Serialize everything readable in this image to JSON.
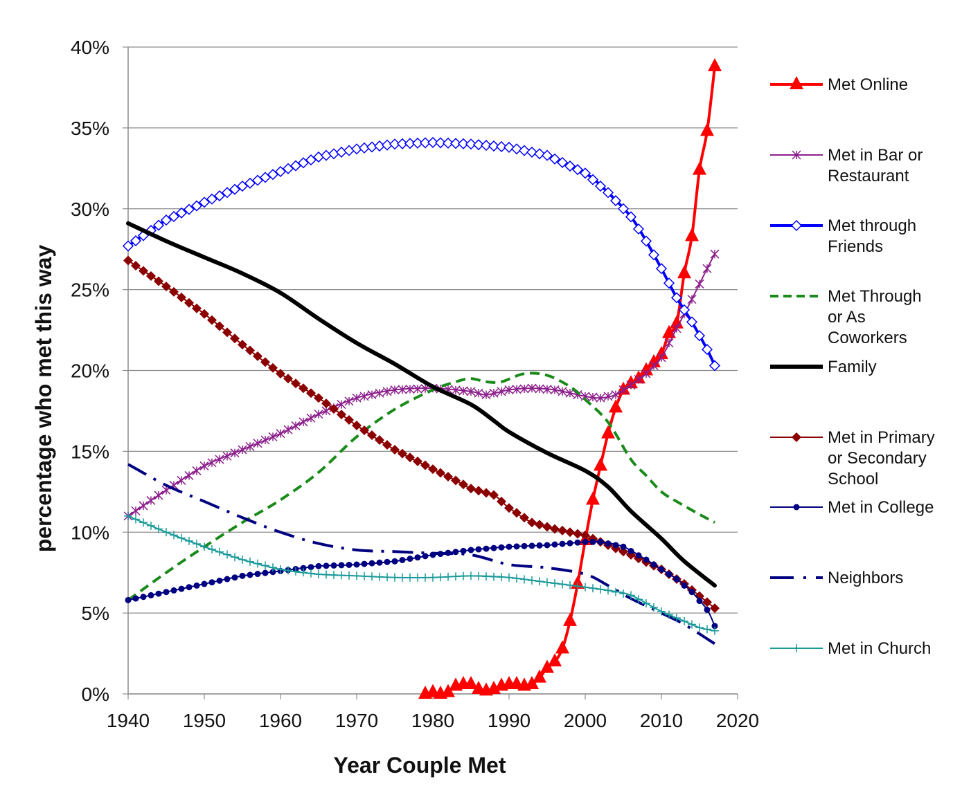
{
  "chart_data": {
    "type": "line",
    "xlabel": "Year Couple Met",
    "ylabel": "percentage who met this way",
    "xlim": [
      1940,
      2020
    ],
    "ylim": [
      0,
      40
    ],
    "x_ticks": [
      "1940",
      "1950",
      "1960",
      "1970",
      "1980",
      "1990",
      "2000",
      "2010",
      "2020"
    ],
    "y_ticks": [
      "0%",
      "5%",
      "10%",
      "15%",
      "20%",
      "25%",
      "30%",
      "35%",
      "40%"
    ],
    "grid": "horizontal",
    "legend_position": "right",
    "series": [
      {
        "name": "Met Online",
        "legend_lines": [
          "Met Online"
        ],
        "color": "#ff0000",
        "marker": "triangle",
        "style": "solid",
        "width": 4,
        "points": [
          [
            1979,
            0
          ],
          [
            1980,
            0.1
          ],
          [
            1981,
            0
          ],
          [
            1982,
            0.1
          ],
          [
            1983,
            0.5
          ],
          [
            1984,
            0.6
          ],
          [
            1985,
            0.6
          ],
          [
            1986,
            0.3
          ],
          [
            1987,
            0.2
          ],
          [
            1988,
            0.3
          ],
          [
            1989,
            0.5
          ],
          [
            1990,
            0.6
          ],
          [
            1991,
            0.6
          ],
          [
            1992,
            0.5
          ],
          [
            1993,
            0.6
          ],
          [
            1994,
            1.0
          ],
          [
            1995,
            1.6
          ],
          [
            1996,
            2.0
          ],
          [
            1997,
            2.8
          ],
          [
            1998,
            4.5
          ],
          [
            1999,
            6.8
          ],
          [
            2000,
            9.5
          ],
          [
            2001,
            12.0
          ],
          [
            2002,
            14.1
          ],
          [
            2003,
            16.1
          ],
          [
            2004,
            17.7
          ],
          [
            2005,
            18.8
          ],
          [
            2006,
            19.2
          ],
          [
            2007,
            19.5
          ],
          [
            2008,
            20.0
          ],
          [
            2009,
            20.5
          ],
          [
            2010,
            21.0
          ],
          [
            2011,
            22.3
          ],
          [
            2012,
            22.9
          ],
          [
            2013,
            26.0
          ],
          [
            2014,
            28.3
          ],
          [
            2015,
            32.4
          ],
          [
            2016,
            34.8
          ],
          [
            2017,
            38.8
          ]
        ]
      },
      {
        "name": "Met in Bar or Restaurant",
        "legend_lines": [
          "Met in Bar or",
          "Restaurant"
        ],
        "color": "#8b1e8b",
        "marker": "star",
        "style": "solid",
        "width": 2,
        "points": [
          [
            1940,
            11.0
          ],
          [
            1945,
            12.6
          ],
          [
            1950,
            14.1
          ],
          [
            1955,
            15.1
          ],
          [
            1960,
            16.1
          ],
          [
            1965,
            17.3
          ],
          [
            1970,
            18.3
          ],
          [
            1975,
            18.8
          ],
          [
            1980,
            18.9
          ],
          [
            1985,
            18.7
          ],
          [
            1987,
            18.5
          ],
          [
            1990,
            18.8
          ],
          [
            1993,
            18.9
          ],
          [
            1996,
            18.8
          ],
          [
            2000,
            18.4
          ],
          [
            2002,
            18.3
          ],
          [
            2004,
            18.5
          ],
          [
            2006,
            19.1
          ],
          [
            2008,
            19.8
          ],
          [
            2010,
            20.8
          ],
          [
            2012,
            22.6
          ],
          [
            2014,
            24.4
          ],
          [
            2016,
            26.3
          ],
          [
            2017,
            27.2
          ]
        ]
      },
      {
        "name": "Met through Friends",
        "legend_lines": [
          "Met through",
          "Friends"
        ],
        "color": "#0000ff",
        "marker": "diamond-open",
        "style": "solid",
        "width": 4,
        "points": [
          [
            1940,
            27.7
          ],
          [
            1945,
            29.3
          ],
          [
            1950,
            30.4
          ],
          [
            1955,
            31.4
          ],
          [
            1960,
            32.3
          ],
          [
            1965,
            33.2
          ],
          [
            1970,
            33.7
          ],
          [
            1975,
            34.0
          ],
          [
            1980,
            34.1
          ],
          [
            1985,
            34.0
          ],
          [
            1990,
            33.8
          ],
          [
            1995,
            33.3
          ],
          [
            2000,
            32.2
          ],
          [
            2003,
            31.0
          ],
          [
            2006,
            29.5
          ],
          [
            2008,
            28.0
          ],
          [
            2010,
            26.3
          ],
          [
            2012,
            24.5
          ],
          [
            2014,
            23.0
          ],
          [
            2016,
            21.3
          ],
          [
            2017,
            20.3
          ]
        ]
      },
      {
        "name": "Met Through or As Coworkers",
        "legend_lines": [
          "Met Through",
          "or As",
          "Coworkers"
        ],
        "color": "#1a8a1a",
        "marker": "none",
        "style": "dashed",
        "width": 4,
        "points": [
          [
            1940,
            5.8
          ],
          [
            1945,
            7.5
          ],
          [
            1950,
            9.1
          ],
          [
            1955,
            10.6
          ],
          [
            1960,
            12.0
          ],
          [
            1965,
            13.7
          ],
          [
            1970,
            15.9
          ],
          [
            1975,
            17.6
          ],
          [
            1980,
            18.8
          ],
          [
            1983,
            19.3
          ],
          [
            1985,
            19.5
          ],
          [
            1987,
            19.3
          ],
          [
            1989,
            19.3
          ],
          [
            1992,
            19.8
          ],
          [
            1995,
            19.7
          ],
          [
            1998,
            19.0
          ],
          [
            2000,
            18.2
          ],
          [
            2003,
            16.8
          ],
          [
            2006,
            14.5
          ],
          [
            2008,
            13.5
          ],
          [
            2010,
            12.5
          ],
          [
            2012,
            11.9
          ],
          [
            2015,
            11.1
          ],
          [
            2017,
            10.6
          ]
        ]
      },
      {
        "name": "Family",
        "legend_lines": [
          "Family"
        ],
        "color": "#000000",
        "marker": "none",
        "style": "solid",
        "width": 6,
        "points": [
          [
            1940,
            29.1
          ],
          [
            1945,
            28.0
          ],
          [
            1950,
            27.0
          ],
          [
            1955,
            26.0
          ],
          [
            1960,
            24.8
          ],
          [
            1965,
            23.2
          ],
          [
            1970,
            21.7
          ],
          [
            1975,
            20.4
          ],
          [
            1980,
            19.0
          ],
          [
            1985,
            17.9
          ],
          [
            1988,
            16.9
          ],
          [
            1990,
            16.2
          ],
          [
            1995,
            14.9
          ],
          [
            2000,
            13.8
          ],
          [
            2003,
            12.8
          ],
          [
            2006,
            11.3
          ],
          [
            2010,
            9.6
          ],
          [
            2013,
            8.2
          ],
          [
            2017,
            6.7
          ]
        ]
      },
      {
        "name": "Met in Primary or Secondary School",
        "legend_lines": [
          "Met in Primary",
          "or Secondary",
          "School"
        ],
        "color": "#8b0000",
        "marker": "diamond",
        "style": "solid",
        "width": 2,
        "points": [
          [
            1940,
            26.8
          ],
          [
            1945,
            25.2
          ],
          [
            1950,
            23.5
          ],
          [
            1955,
            21.6
          ],
          [
            1960,
            19.8
          ],
          [
            1965,
            18.3
          ],
          [
            1970,
            16.6
          ],
          [
            1975,
            15.1
          ],
          [
            1980,
            13.9
          ],
          [
            1983,
            13.2
          ],
          [
            1985,
            12.7
          ],
          [
            1988,
            12.3
          ],
          [
            1990,
            11.5
          ],
          [
            1993,
            10.6
          ],
          [
            1996,
            10.2
          ],
          [
            2000,
            9.8
          ],
          [
            2003,
            9.2
          ],
          [
            2006,
            8.6
          ],
          [
            2010,
            7.7
          ],
          [
            2013,
            6.8
          ],
          [
            2017,
            5.3
          ]
        ]
      },
      {
        "name": "Met in College",
        "legend_lines": [
          "Met in College"
        ],
        "color": "#000080",
        "marker": "dot",
        "style": "solid",
        "width": 2,
        "points": [
          [
            1940,
            5.8
          ],
          [
            1945,
            6.3
          ],
          [
            1950,
            6.8
          ],
          [
            1955,
            7.3
          ],
          [
            1960,
            7.6
          ],
          [
            1965,
            7.9
          ],
          [
            1970,
            8.0
          ],
          [
            1975,
            8.2
          ],
          [
            1980,
            8.6
          ],
          [
            1985,
            8.9
          ],
          [
            1990,
            9.1
          ],
          [
            1995,
            9.2
          ],
          [
            2000,
            9.4
          ],
          [
            2002,
            9.4
          ],
          [
            2005,
            9.1
          ],
          [
            2008,
            8.3
          ],
          [
            2010,
            7.7
          ],
          [
            2012,
            7.1
          ],
          [
            2014,
            6.3
          ],
          [
            2016,
            5.2
          ],
          [
            2017,
            4.2
          ]
        ]
      },
      {
        "name": "Neighbors",
        "legend_lines": [
          "Neighbors"
        ],
        "color": "#000080",
        "marker": "none",
        "style": "dashdot",
        "width": 4,
        "points": [
          [
            1940,
            14.2
          ],
          [
            1945,
            12.9
          ],
          [
            1950,
            11.9
          ],
          [
            1955,
            10.9
          ],
          [
            1960,
            10.0
          ],
          [
            1965,
            9.3
          ],
          [
            1970,
            8.9
          ],
          [
            1975,
            8.8
          ],
          [
            1980,
            8.7
          ],
          [
            1985,
            8.6
          ],
          [
            1990,
            8.0
          ],
          [
            1995,
            7.8
          ],
          [
            2000,
            7.4
          ],
          [
            2003,
            6.7
          ],
          [
            2006,
            5.9
          ],
          [
            2010,
            5.0
          ],
          [
            2013,
            4.3
          ],
          [
            2017,
            3.1
          ]
        ]
      },
      {
        "name": "Met in Church",
        "legend_lines": [
          "Met in Church"
        ],
        "color": "#1a9a9a",
        "marker": "plus",
        "style": "solid",
        "width": 2,
        "points": [
          [
            1940,
            11.0
          ],
          [
            1945,
            10.0
          ],
          [
            1950,
            9.1
          ],
          [
            1955,
            8.3
          ],
          [
            1960,
            7.7
          ],
          [
            1965,
            7.4
          ],
          [
            1970,
            7.3
          ],
          [
            1975,
            7.2
          ],
          [
            1980,
            7.2
          ],
          [
            1985,
            7.3
          ],
          [
            1990,
            7.2
          ],
          [
            1995,
            6.9
          ],
          [
            2000,
            6.6
          ],
          [
            2003,
            6.4
          ],
          [
            2006,
            6.1
          ],
          [
            2010,
            5.1
          ],
          [
            2013,
            4.5
          ],
          [
            2015,
            4.1
          ],
          [
            2017,
            3.9
          ]
        ]
      }
    ]
  }
}
